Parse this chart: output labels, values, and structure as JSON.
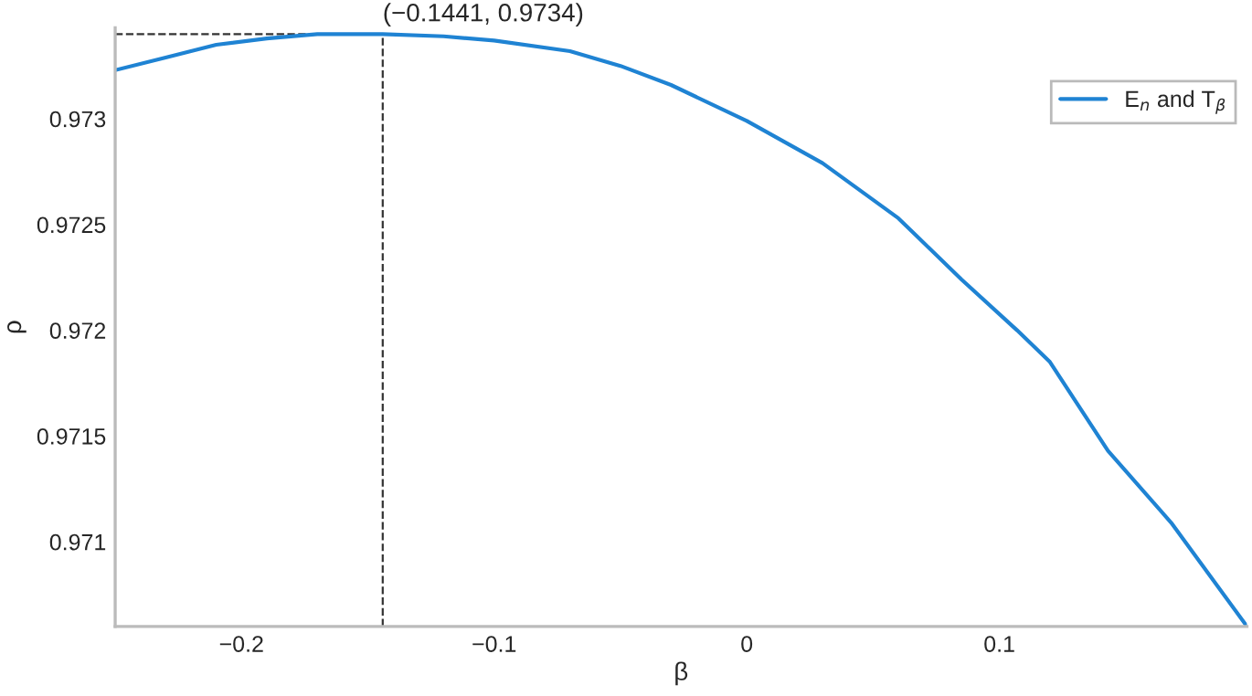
{
  "chart_data": {
    "type": "line",
    "xlabel": "β",
    "ylabel": "ρ",
    "x": [
      -0.25,
      -0.23,
      -0.21,
      -0.19,
      -0.17,
      -0.1441,
      -0.12,
      -0.1,
      -0.07,
      -0.05,
      -0.03,
      0,
      0.03,
      0.06,
      0.085,
      0.107,
      0.12,
      0.143,
      0.168,
      0.198
    ],
    "series": [
      {
        "name": "E$_{n}$ and T$_{β}$",
        "color": "#1f83d3",
        "values": [
          0.97323,
          0.97329,
          0.97335,
          0.97338,
          0.9734,
          0.9734,
          0.97339,
          0.97337,
          0.97332,
          0.97325,
          0.97316,
          0.97299,
          0.97279,
          0.97253,
          0.97224,
          0.972,
          0.97185,
          0.97143,
          0.97109,
          0.9706
        ]
      }
    ],
    "annotations": [
      {
        "text": "(−0.1441, 0.9734)",
        "x": -0.1441,
        "y": 0.9734
      }
    ],
    "ref_lines": [
      {
        "axis": "x",
        "value": -0.1441,
        "color": "#333333",
        "line_style": "dashed"
      },
      {
        "axis": "y",
        "value": 0.9734,
        "color": "#333333",
        "line_style": "dashed"
      }
    ],
    "xlim": [
      -0.25,
      0.198
    ],
    "ylim": [
      0.9706,
      0.97343
    ],
    "xticks": [
      {
        "value": -0.2,
        "label": "−0.2"
      },
      {
        "value": -0.1,
        "label": "−0.1"
      },
      0,
      0.1
    ],
    "yticks": [
      0.971,
      0.9715,
      0.972,
      0.9725,
      0.973
    ],
    "grid": false,
    "legend": "top right",
    "marker": "none",
    "line_style": "solid"
  }
}
